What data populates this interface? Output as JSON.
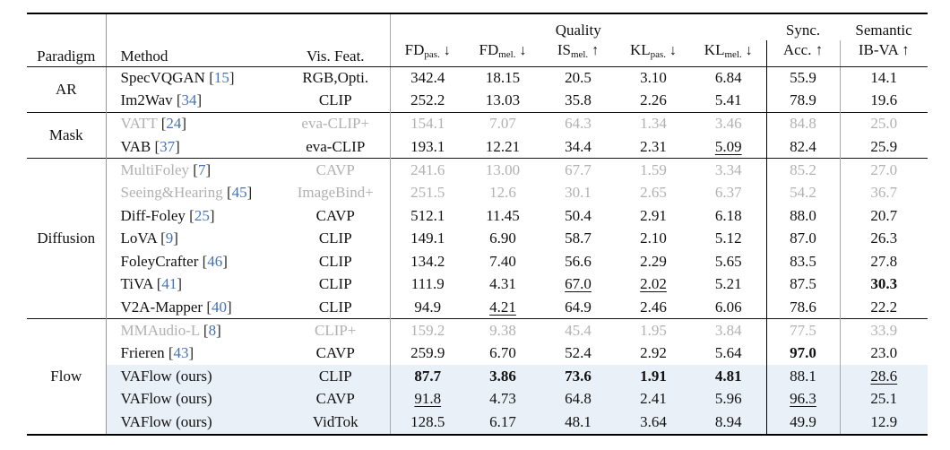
{
  "colors": {
    "citation_blue": "#4573b3",
    "grayed_text": "#b1b1b1",
    "highlight_background": "#e9f0f8",
    "rule_black": "#151515",
    "vertical_line_gray": "#979797"
  },
  "table": {
    "header": {
      "paradigm": "Paradigm",
      "method": "Method",
      "vis_feat": "Vis. Feat.",
      "quality": "Quality",
      "sync": [
        "Sync.",
        "Acc. ↑"
      ],
      "semantic": [
        "Semantic",
        "IB-VA ↑"
      ],
      "metrics": [
        {
          "name": "FD",
          "sub": "pas.",
          "arrow": "↓"
        },
        {
          "name": "FD",
          "sub": "mel.",
          "arrow": "↓"
        },
        {
          "name": "IS",
          "sub": "mel.",
          "arrow": "↑"
        },
        {
          "name": "KL",
          "sub": "pas.",
          "arrow": "↓"
        },
        {
          "name": "KL",
          "sub": "mel.",
          "arrow": "↓"
        }
      ]
    },
    "groups": [
      {
        "paradigm": "AR",
        "rows": [
          {
            "method": "SpecVQGAN",
            "cite": "15",
            "vis": "RGB,Opti.",
            "values": [
              "342.4",
              "18.15",
              "20.5",
              "3.10",
              "6.84",
              "55.9",
              "14.1"
            ],
            "bold": [],
            "underline": [],
            "gray": false,
            "highlight": false
          },
          {
            "method": "Im2Wav",
            "cite": "34",
            "vis": "CLIP",
            "values": [
              "252.2",
              "13.03",
              "35.8",
              "2.26",
              "5.41",
              "78.9",
              "19.6"
            ],
            "bold": [],
            "underline": [],
            "gray": false,
            "highlight": false
          }
        ]
      },
      {
        "paradigm": "Mask",
        "rows": [
          {
            "method": "VATT",
            "cite": "24",
            "vis": "eva-CLIP+",
            "values": [
              "154.1",
              "7.07",
              "64.3",
              "1.34",
              "3.46",
              "84.8",
              "25.0"
            ],
            "bold": [],
            "underline": [],
            "gray": true,
            "highlight": false
          },
          {
            "method": "VAB",
            "cite": "37",
            "vis": "eva-CLIP",
            "values": [
              "193.1",
              "12.21",
              "34.4",
              "2.31",
              "5.09",
              "82.4",
              "25.9"
            ],
            "bold": [],
            "underline": [
              4
            ],
            "gray": false,
            "highlight": false
          }
        ]
      },
      {
        "paradigm": "Diffusion",
        "rows": [
          {
            "method": "MultiFoley",
            "cite": "7",
            "vis": "CAVP",
            "values": [
              "241.6",
              "13.00",
              "67.7",
              "1.59",
              "3.34",
              "85.2",
              "27.0"
            ],
            "bold": [],
            "underline": [],
            "gray": true,
            "highlight": false
          },
          {
            "method": "Seeing&Hearing",
            "cite": "45",
            "vis": "ImageBind+",
            "values": [
              "251.5",
              "12.6",
              "30.1",
              "2.65",
              "6.37",
              "54.2",
              "36.7"
            ],
            "bold": [],
            "underline": [],
            "gray": true,
            "highlight": false
          },
          {
            "method": "Diff-Foley",
            "cite": "25",
            "vis": "CAVP",
            "values": [
              "512.1",
              "11.45",
              "50.4",
              "2.91",
              "6.18",
              "88.0",
              "20.7"
            ],
            "bold": [],
            "underline": [],
            "gray": false,
            "highlight": false
          },
          {
            "method": "LoVA",
            "cite": "9",
            "vis": "CLIP",
            "values": [
              "149.1",
              "6.90",
              "58.7",
              "2.10",
              "5.12",
              "87.0",
              "26.3"
            ],
            "bold": [],
            "underline": [],
            "gray": false,
            "highlight": false
          },
          {
            "method": "FoleyCrafter",
            "cite": "46",
            "vis": "CLIP",
            "values": [
              "134.2",
              "7.40",
              "56.6",
              "2.29",
              "5.65",
              "83.5",
              "27.8"
            ],
            "bold": [],
            "underline": [],
            "gray": false,
            "highlight": false
          },
          {
            "method": "TiVA",
            "cite": "41",
            "vis": "CLIP",
            "values": [
              "111.9",
              "4.31",
              "67.0",
              "2.02",
              "5.21",
              "87.5",
              "30.3"
            ],
            "bold": [
              6
            ],
            "underline": [
              2,
              3
            ],
            "gray": false,
            "highlight": false
          },
          {
            "method": "V2A-Mapper",
            "cite": "40",
            "vis": "CLIP",
            "values": [
              "94.9",
              "4.21",
              "64.9",
              "2.46",
              "6.06",
              "78.6",
              "22.2"
            ],
            "bold": [],
            "underline": [
              1
            ],
            "gray": false,
            "highlight": false
          }
        ]
      },
      {
        "paradigm": "Flow",
        "rows": [
          {
            "method": "MMAudio-L",
            "cite": "8",
            "vis": "CLIP+",
            "values": [
              "159.2",
              "9.38",
              "45.4",
              "1.95",
              "3.84",
              "77.5",
              "33.9"
            ],
            "bold": [],
            "underline": [],
            "gray": true,
            "highlight": false
          },
          {
            "method": "Frieren",
            "cite": "43",
            "vis": "CAVP",
            "values": [
              "259.9",
              "6.70",
              "52.4",
              "2.92",
              "5.64",
              "97.0",
              "23.0"
            ],
            "bold": [
              5
            ],
            "underline": [],
            "gray": false,
            "highlight": false
          },
          {
            "method": "VAFlow (ours)",
            "cite": "",
            "vis": "CLIP",
            "values": [
              "87.7",
              "3.86",
              "73.6",
              "1.91",
              "4.81",
              "88.1",
              "28.6"
            ],
            "bold": [
              0,
              1,
              2,
              3,
              4
            ],
            "underline": [
              6
            ],
            "gray": false,
            "highlight": true
          },
          {
            "method": "VAFlow (ours)",
            "cite": "",
            "vis": "CAVP",
            "values": [
              "91.8",
              "4.73",
              "64.8",
              "2.41",
              "5.96",
              "96.3",
              "25.1"
            ],
            "bold": [],
            "underline": [
              0,
              5
            ],
            "gray": false,
            "highlight": true
          },
          {
            "method": "VAFlow (ours)",
            "cite": "",
            "vis": "VidTok",
            "values": [
              "128.5",
              "6.17",
              "48.1",
              "3.64",
              "8.94",
              "49.9",
              "12.9"
            ],
            "bold": [],
            "underline": [],
            "gray": false,
            "highlight": true
          }
        ]
      }
    ]
  }
}
